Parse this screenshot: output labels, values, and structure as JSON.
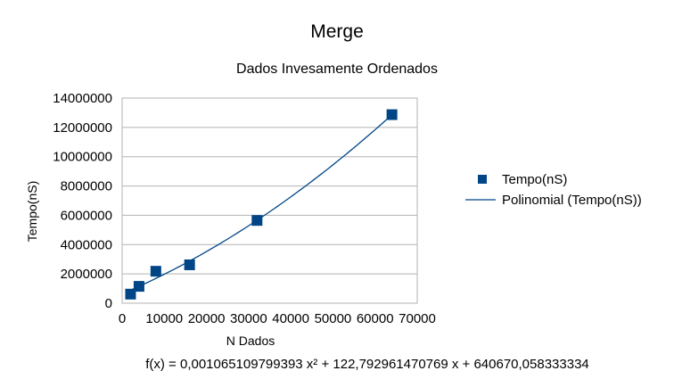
{
  "chart_data": {
    "type": "scatter",
    "title": "Merge",
    "subtitle": "Dados Invesamente Ordenados",
    "xlabel": "N Dados",
    "ylabel": "Tempo(nS)",
    "xlim": [
      0,
      70000
    ],
    "ylim": [
      0,
      14000000
    ],
    "x_ticks": [
      0,
      10000,
      20000,
      30000,
      40000,
      50000,
      60000,
      70000
    ],
    "y_ticks": [
      0,
      2000000,
      4000000,
      6000000,
      8000000,
      10000000,
      12000000,
      14000000
    ],
    "x_tick_labels": [
      "0",
      "10000",
      "20000",
      "30000",
      "40000",
      "50000",
      "60000",
      "70000"
    ],
    "y_tick_labels": [
      "0",
      "2000000",
      "4000000",
      "6000000",
      "8000000",
      "10000000",
      "12000000",
      "14000000"
    ],
    "grid": "horizontal",
    "legend_position": "right",
    "series": [
      {
        "name": "Tempo(nS)",
        "kind": "markers",
        "color": "#004586",
        "x": [
          2000,
          4000,
          8000,
          16000,
          32000,
          64000
        ],
        "y": [
          620000,
          1150000,
          2180000,
          2620000,
          5650000,
          12870000
        ]
      },
      {
        "name": "Polinomial (Tempo(nS))",
        "kind": "trendline",
        "color": "#004586",
        "x_range": [
          2000,
          64000
        ],
        "coefficients": [
          640670.058333334,
          122.792961470769,
          0.001065109799393
        ]
      }
    ],
    "equation": "f(x) = 0,001065109799393 x² + 122,792961470769 x + 640670,058333334"
  }
}
